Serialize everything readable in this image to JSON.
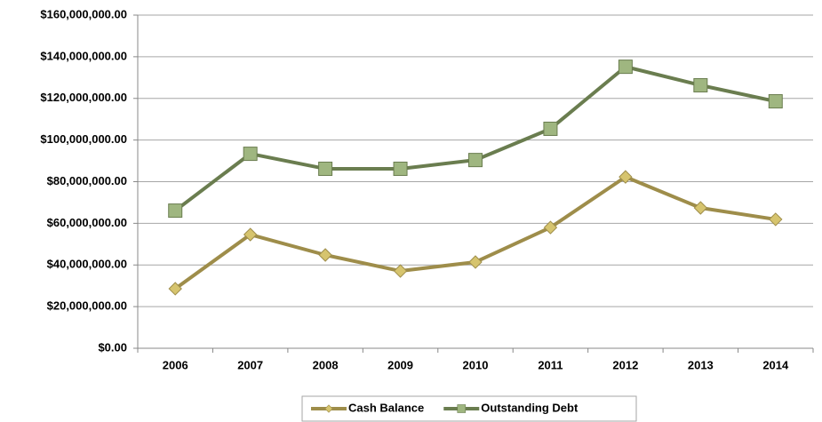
{
  "chart_data": {
    "type": "line",
    "categories": [
      "2006",
      "2007",
      "2008",
      "2009",
      "2010",
      "2011",
      "2012",
      "2013",
      "2014"
    ],
    "series": [
      {
        "name": "Cash Balance",
        "color": "#9e8d4a",
        "marker_color": "#d6c46e",
        "marker": "diamond",
        "values": [
          28600000,
          54600000,
          44800000,
          37100000,
          41400000,
          58000000,
          82300000,
          67400000,
          61900000
        ]
      },
      {
        "name": "Outstanding Debt",
        "color": "#6a7d4f",
        "marker_color": "#9fb680",
        "marker": "square",
        "values": [
          66100000,
          93400000,
          86200000,
          86200000,
          90400000,
          105400000,
          135200000,
          126300000,
          118600000
        ]
      }
    ],
    "ylim": [
      0,
      160000000
    ],
    "yticks": [
      {
        "value": 0,
        "label": "$0.00"
      },
      {
        "value": 20000000,
        "label": "$20,000,000.00"
      },
      {
        "value": 40000000,
        "label": "$40,000,000.00"
      },
      {
        "value": 60000000,
        "label": "$60,000,000.00"
      },
      {
        "value": 80000000,
        "label": "$80,000,000.00"
      },
      {
        "value": 100000000,
        "label": "$100,000,000.00"
      },
      {
        "value": 120000000,
        "label": "$120,000,000.00"
      },
      {
        "value": 140000000,
        "label": "$140,000,000.00"
      },
      {
        "value": 160000000,
        "label": "$160,000,000.00"
      }
    ],
    "grid": true,
    "legend": "bottom"
  }
}
